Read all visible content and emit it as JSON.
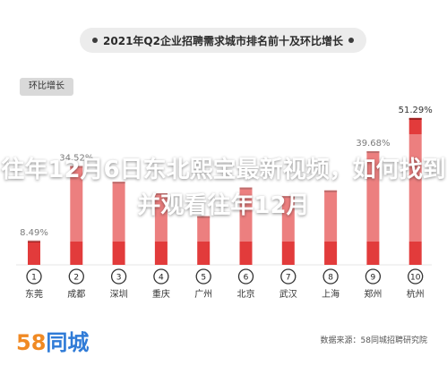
{
  "page": {
    "title": "2021年Q2企业招聘需求城市排名前十及环比增长",
    "tag": "环比增长",
    "overlay_text": "往年12月6日东北熙宝最新视频，如何找到并观看往年12月",
    "logo_num": "58",
    "logo_text": "同城",
    "source": "数据来源：58同城招聘研究院"
  },
  "chart_data": {
    "type": "bar",
    "title": "2021年Q2企业招聘需求城市排名前十及环比增长",
    "ylabel": "环比增长",
    "categories": [
      "东莞",
      "成都",
      "深圳",
      "重庆",
      "广州",
      "北京",
      "武汉",
      "上海",
      "郑州",
      "杭州"
    ],
    "ranks": [
      "1",
      "2",
      "3",
      "4",
      "5",
      "6",
      "7",
      "8",
      "9",
      "10"
    ],
    "values": [
      8.49,
      34.52,
      29,
      25,
      17,
      27,
      24,
      26,
      39.68,
      51.29
    ],
    "value_labels": [
      "8.49%",
      "34.52%",
      "",
      "",
      "",
      "",
      "",
      "",
      "39.68%",
      "51.29%"
    ],
    "ylim": [
      0,
      55
    ],
    "colors": {
      "bar": "#e23b3b",
      "bar_dark": "#9b2020",
      "rank_circle": "#ffffff",
      "rank_stroke": "#333333",
      "grid": "#e6e6e6"
    }
  }
}
